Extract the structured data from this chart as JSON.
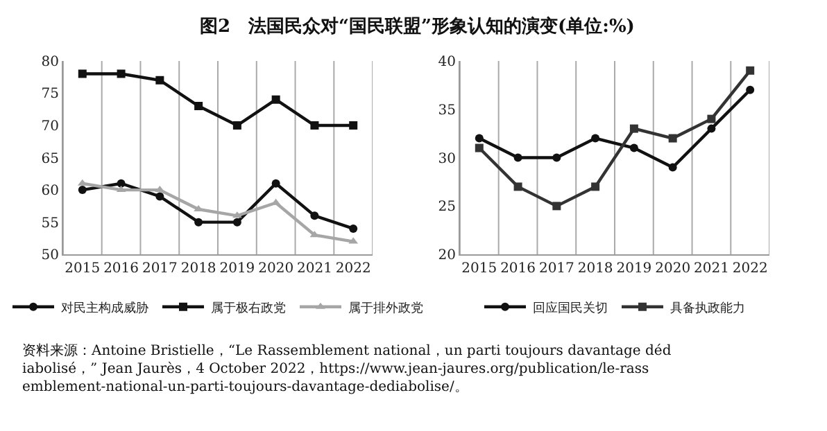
{
  "chart_data": [
    {
      "type": "line",
      "title": "图2　法国民众对“国民联盟”形象认知的演变(单位:%)",
      "categories": [
        "2015",
        "2016",
        "2017",
        "2018",
        "2019",
        "2020",
        "2021",
        "2022"
      ],
      "series": [
        {
          "name": "对民主构成威胁",
          "color": "#111111",
          "marker": "circle",
          "values": [
            60,
            61,
            59,
            55,
            55,
            61,
            56,
            54
          ]
        },
        {
          "name": "属于极右政党",
          "color": "#111111",
          "marker": "square",
          "values": [
            78,
            78,
            77,
            73,
            70,
            74,
            70,
            70
          ]
        },
        {
          "name": "属于排外政党",
          "color": "#a6a6a6",
          "marker": "triangle",
          "values": [
            61,
            60,
            60,
            57,
            56,
            58,
            53,
            52
          ]
        }
      ],
      "ylim": [
        50,
        80
      ],
      "yticks": [
        50,
        55,
        60,
        65,
        70,
        75,
        80
      ],
      "grid": "x",
      "legend": "bottom",
      "line_style": "solid",
      "annotations": [
        "资料来源：Antoine Bristielle，“Le Rassemblement national，un parti toujours davantage dédiabolisé，” Jean Jaurès，4 October 2022，https://www.jean-jaures.org/publication/le-rassemblement-national-un-parti-toujours-davantage-dediabolise/。"
      ]
    },
    {
      "type": "line",
      "categories": [
        "2015",
        "2016",
        "2017",
        "2018",
        "2019",
        "2020",
        "2021",
        "2022"
      ],
      "series": [
        {
          "name": "回应国民关切",
          "color": "#111111",
          "marker": "circle",
          "values": [
            32,
            30,
            30,
            32,
            31,
            29,
            33,
            37
          ]
        },
        {
          "name": "具备执政能力",
          "color": "#333333",
          "marker": "square",
          "values": [
            31,
            27,
            25,
            27,
            33,
            32,
            34,
            39
          ]
        }
      ],
      "ylim": [
        20,
        40
      ],
      "yticks": [
        20,
        25,
        30,
        35,
        40
      ],
      "grid": "x",
      "legend": "bottom",
      "line_style": "solid"
    }
  ]
}
